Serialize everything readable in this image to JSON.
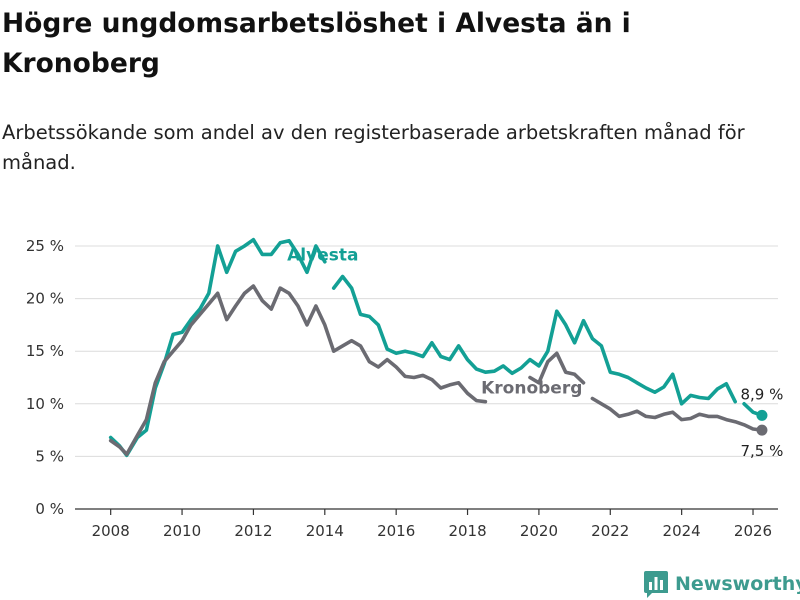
{
  "header": {
    "title": "Högre ungdomsarbetslöshet i Alvesta än i Kronoberg",
    "subtitle": "Arbetssökande som andel av den registerbaserade arbetskraften månad för månad."
  },
  "brand": {
    "name": "Newsworthy",
    "icon": "bar-chart-logo-icon",
    "color": "#3d9b8f"
  },
  "chart_data": {
    "type": "line",
    "title": "Högre ungdomsarbetslöshet i Alvesta än i Kronoberg",
    "subtitle": "Arbetssökande som andel av den registerbaserade arbetskraften månad för månad.",
    "xlabel": "",
    "ylabel": "",
    "xlim": [
      2007.0,
      2026.7
    ],
    "ylim": [
      0,
      25
    ],
    "grid": true,
    "x_ticks": [
      {
        "value": 2008,
        "label": "2008"
      },
      {
        "value": 2010,
        "label": "2010"
      },
      {
        "value": 2012,
        "label": "2012"
      },
      {
        "value": 2014,
        "label": "2014"
      },
      {
        "value": 2016,
        "label": "2016"
      },
      {
        "value": 2018,
        "label": "2018"
      },
      {
        "value": 2020,
        "label": "2020"
      },
      {
        "value": 2022,
        "label": "2022"
      },
      {
        "value": 2024,
        "label": "2024"
      },
      {
        "value": 2026,
        "label": "2026"
      }
    ],
    "y_ticks": [
      {
        "value": 0,
        "label": "0 %"
      },
      {
        "value": 5,
        "label": "5 %"
      },
      {
        "value": 10,
        "label": "10 %"
      },
      {
        "value": 15,
        "label": "15 %"
      },
      {
        "value": 20,
        "label": "20 %"
      },
      {
        "value": 25,
        "label": "25 %"
      }
    ],
    "series": [
      {
        "name": "Alvesta",
        "label": "Alvesta",
        "color": "#13a095",
        "end_label": "8,9 %",
        "x": [
          2008.0,
          2008.25,
          2008.45,
          2008.75,
          2009.0,
          2009.25,
          2009.5,
          2009.75,
          2010.0,
          2010.25,
          2010.5,
          2010.75,
          2011.0,
          2011.25,
          2011.5,
          2011.75,
          2012.0,
          2012.25,
          2012.5,
          2012.75,
          2013.0,
          2013.25,
          2013.5,
          2013.75,
          2014.0,
          2014.25,
          2014.5,
          2014.75,
          2015.0,
          2015.25,
          2015.5,
          2015.75,
          2016.0,
          2016.25,
          2016.5,
          2016.75,
          2017.0,
          2017.25,
          2017.5,
          2017.75,
          2018.0,
          2018.25,
          2018.5,
          2018.75,
          2019.0,
          2019.25,
          2019.5,
          2019.75,
          2020.0,
          2020.25,
          2020.5,
          2020.75,
          2021.0,
          2021.25,
          2021.5,
          2021.75,
          2022.0,
          2022.25,
          2022.5,
          2022.75,
          2023.0,
          2023.25,
          2023.5,
          2023.75,
          2024.0,
          2024.25,
          2024.5,
          2024.75,
          2025.0,
          2025.25,
          2025.5,
          2025.75,
          2026.0,
          2026.25
        ],
        "values": [
          6.8,
          6.0,
          5.1,
          6.8,
          7.5,
          11.5,
          13.8,
          16.6,
          16.8,
          18.0,
          19.0,
          20.5,
          25.0,
          22.5,
          24.5,
          25.0,
          25.6,
          24.2,
          24.2,
          25.3,
          25.5,
          24.2,
          22.5,
          25.0,
          23.5,
          21.0,
          22.1,
          21.0,
          18.5,
          18.3,
          17.5,
          15.2,
          14.8,
          15.0,
          14.8,
          14.5,
          15.8,
          14.5,
          14.2,
          15.5,
          14.2,
          13.3,
          13.0,
          13.1,
          13.6,
          12.9,
          13.4,
          14.2,
          13.6,
          15.0,
          18.8,
          17.5,
          15.8,
          17.9,
          16.2,
          15.5,
          13.0,
          12.8,
          12.5,
          12.0,
          11.5,
          11.1,
          11.6,
          12.8,
          10.0,
          10.8,
          10.6,
          10.5,
          11.4,
          11.9,
          10.2,
          10.0,
          9.2,
          8.9
        ],
        "gaps": [
          {
            "from": 2014.0,
            "to": 2014.25,
            "reason": "label Alvesta"
          },
          {
            "from": 2025.5,
            "to": 2025.75,
            "reason": "end label"
          }
        ]
      },
      {
        "name": "Kronoberg",
        "label": "Kronoberg",
        "color": "#6b6b72",
        "end_label": "7,5 %",
        "x": [
          2008.0,
          2008.25,
          2008.45,
          2008.75,
          2009.0,
          2009.25,
          2009.5,
          2009.75,
          2010.0,
          2010.25,
          2010.5,
          2010.75,
          2011.0,
          2011.25,
          2011.5,
          2011.75,
          2012.0,
          2012.25,
          2012.5,
          2012.75,
          2013.0,
          2013.25,
          2013.5,
          2013.75,
          2014.0,
          2014.25,
          2014.5,
          2014.75,
          2015.0,
          2015.25,
          2015.5,
          2015.75,
          2016.0,
          2016.25,
          2016.5,
          2016.75,
          2017.0,
          2017.25,
          2017.5,
          2017.75,
          2018.0,
          2018.25,
          2018.5,
          2018.75,
          2019.0,
          2019.25,
          2019.5,
          2019.75,
          2020.0,
          2020.25,
          2020.5,
          2020.75,
          2021.0,
          2021.25,
          2021.5,
          2021.75,
          2022.0,
          2022.25,
          2022.5,
          2022.75,
          2023.0,
          2023.25,
          2023.5,
          2023.75,
          2024.0,
          2024.25,
          2024.5,
          2024.75,
          2025.0,
          2025.25,
          2025.5,
          2025.75,
          2026.0,
          2026.25
        ],
        "values": [
          6.5,
          5.9,
          5.2,
          7.0,
          8.5,
          12.0,
          14.0,
          15.0,
          16.0,
          17.5,
          18.5,
          19.5,
          20.5,
          18.0,
          19.3,
          20.5,
          21.2,
          19.8,
          19.0,
          21.0,
          20.5,
          19.3,
          17.5,
          19.3,
          17.5,
          15.0,
          15.5,
          16.0,
          15.5,
          14.0,
          13.5,
          14.2,
          13.5,
          12.6,
          12.5,
          12.7,
          12.3,
          11.5,
          11.8,
          12.0,
          11.0,
          10.3,
          10.2,
          10.4,
          10.0,
          9.7,
          10.2,
          12.5,
          12.0,
          14.0,
          14.8,
          13.0,
          12.8,
          12.0,
          10.5,
          10.0,
          9.5,
          8.8,
          9.0,
          9.3,
          8.8,
          8.7,
          9.0,
          9.2,
          8.5,
          8.6,
          9.0,
          8.8,
          8.8,
          8.5,
          8.3,
          8.0,
          7.6,
          7.5
        ],
        "gaps": [
          {
            "from": 2018.5,
            "to": 2019.75,
            "reason": "label Kronoberg"
          },
          {
            "from": 2021.25,
            "to": 2021.5,
            "reason": "label Kronoberg"
          }
        ]
      }
    ]
  }
}
